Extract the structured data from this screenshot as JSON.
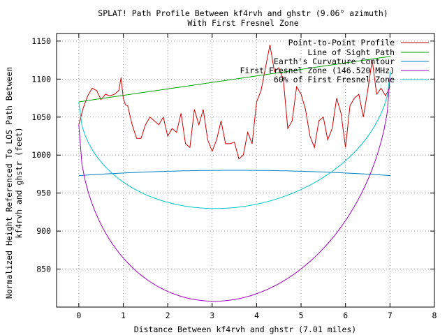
{
  "chart_data": {
    "type": "line",
    "title": "SPLAT! Path Profile Between kf4rvh and ghstr (9.06° azimuth)",
    "subtitle": "With First Fresnel Zone",
    "xlabel": "Distance Between kf4rvh and ghstr (7.01 miles)",
    "ylabel_line1": "Normalized Height Referenced To LOS Path Between",
    "ylabel_line2": "kf4rvh and ghstr (feet)",
    "xlim": [
      -0.5,
      8
    ],
    "ylim": [
      800,
      1160
    ],
    "xticks": [
      0,
      1,
      2,
      3,
      4,
      5,
      6,
      7,
      8
    ],
    "yticks": [
      850,
      900,
      950,
      1000,
      1050,
      1100,
      1150
    ],
    "grid": true,
    "legend_position": "top-right",
    "series": [
      {
        "name": "Point-to-Point Profile",
        "color": "#cc0000",
        "x": [
          0,
          0.1,
          0.2,
          0.3,
          0.4,
          0.5,
          0.6,
          0.7,
          0.8,
          0.9,
          0.95,
          1.0,
          1.05,
          1.1,
          1.2,
          1.3,
          1.4,
          1.5,
          1.6,
          1.7,
          1.8,
          1.9,
          2.0,
          2.1,
          2.2,
          2.3,
          2.4,
          2.5,
          2.6,
          2.7,
          2.8,
          2.9,
          3.0,
          3.1,
          3.2,
          3.3,
          3.4,
          3.5,
          3.6,
          3.7,
          3.8,
          3.9,
          4.0,
          4.1,
          4.2,
          4.3,
          4.4,
          4.5,
          4.6,
          4.7,
          4.8,
          4.9,
          5.0,
          5.1,
          5.2,
          5.3,
          5.4,
          5.5,
          5.6,
          5.7,
          5.8,
          5.9,
          6.0,
          6.1,
          6.2,
          6.3,
          6.4,
          6.5,
          6.6,
          6.7,
          6.8,
          6.9,
          7.0
        ],
        "y": [
          1040,
          1062,
          1078,
          1088,
          1085,
          1073,
          1080,
          1078,
          1080,
          1085,
          1102,
          1075,
          1066,
          1065,
          1040,
          1022,
          1022,
          1040,
          1050,
          1045,
          1040,
          1050,
          1025,
          1035,
          1030,
          1055,
          1015,
          1010,
          1060,
          1040,
          1060,
          1020,
          1005,
          1020,
          1045,
          1015,
          1015,
          1017,
          995,
          1000,
          1030,
          1015,
          1070,
          1085,
          1115,
          1145,
          1110,
          1115,
          1100,
          1035,
          1045,
          1090,
          1080,
          1060,
          1025,
          1010,
          1045,
          1050,
          1020,
          1035,
          1075,
          1055,
          1010,
          1065,
          1075,
          1080,
          1050,
          1085,
          1125,
          1080,
          1088,
          1078,
          1090
        ]
      },
      {
        "name": "Line of Sight Path",
        "color": "#00a000",
        "x": [
          0,
          7.01
        ],
        "y": [
          1070,
          1130
        ]
      },
      {
        "name": "Earth's Curvature Contour",
        "color": "#0080c0",
        "x": [
          0,
          7.01
        ],
        "y": [
          973,
          973
        ],
        "bulge": 7
      },
      {
        "name": "First Fresnel Zone (146.520 MHz)",
        "color": "#a000c0",
        "x": [
          0,
          7.01
        ],
        "y": [
          1040,
          1110
        ],
        "fresnel_radius": 265,
        "fresnel_factor": 1.0
      },
      {
        "name": "60% of First Fresnel Zone",
        "color": "#00c8c8",
        "x": [
          0,
          7.01
        ],
        "y": [
          1070,
          1110
        ],
        "fresnel_radius": 265,
        "fresnel_factor": 0.6
      }
    ]
  }
}
